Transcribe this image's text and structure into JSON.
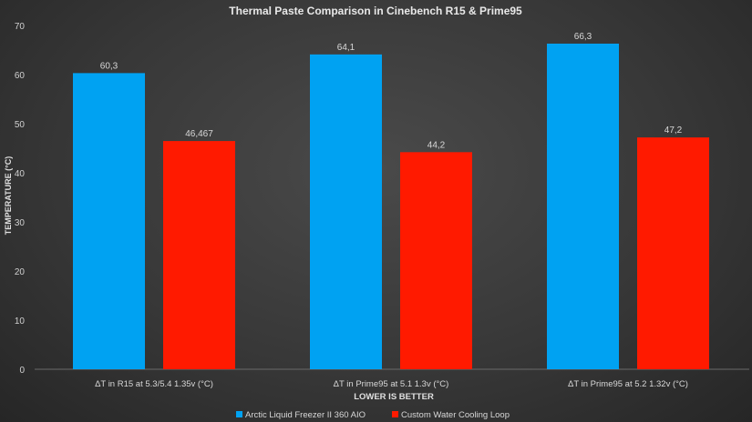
{
  "chart_data": {
    "type": "bar",
    "title": "Thermal Paste Comparison in Cinebench R15 & Prime95",
    "xlabel": "LOWER IS BETTER",
    "ylabel": "TEMPERATURE (°C)",
    "ylim": [
      0,
      70
    ],
    "yticks": [
      0,
      10,
      20,
      30,
      40,
      50,
      60,
      70
    ],
    "grid": false,
    "legend_position": "bottom",
    "categories": [
      "ΔT in R15 at 5.3/5.4 1.35v (°C)",
      "ΔT in Prime95 at 5.1 1.3v (°C)",
      "ΔT in Prime95 at 5.2 1.32v (°C)"
    ],
    "series": [
      {
        "name": "Arctic Liquid Freezer II 360 AIO",
        "color": "#00a2f2",
        "values": [
          60.3,
          64.1,
          66.3
        ],
        "labels": [
          "60,3",
          "64,1",
          "66,3"
        ]
      },
      {
        "name": "Custom Water Cooling Loop",
        "color": "#ff1a00",
        "values": [
          46.467,
          44.2,
          47.2
        ],
        "labels": [
          "46,467",
          "44,2",
          "47,2"
        ]
      }
    ]
  }
}
